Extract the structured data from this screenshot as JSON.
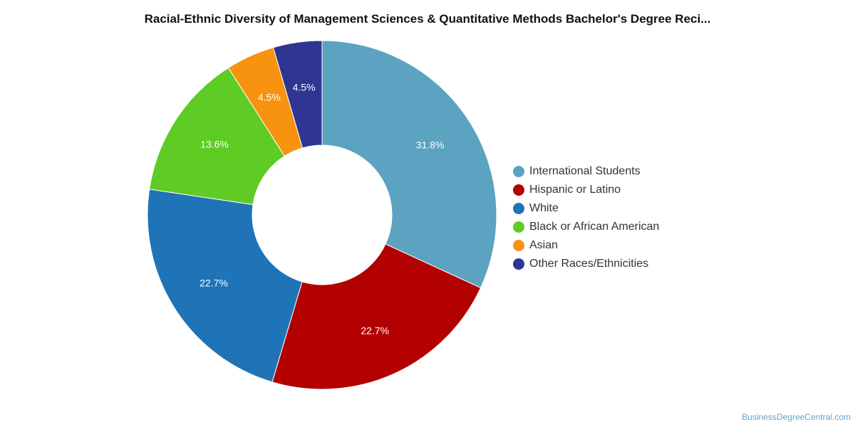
{
  "chart_data": {
    "type": "pie",
    "title": "Racial-Ethnic Diversity of Management Sciences & Quantitative Methods Bachelor's Degree Reci...",
    "donut": true,
    "legend_position": "right",
    "categories": [
      "International Students",
      "Hispanic or Latino",
      "White",
      "Black or African American",
      "Asian",
      "Other Races/Ethnicities"
    ],
    "values": [
      31.8,
      22.7,
      22.7,
      13.6,
      4.5,
      4.5
    ],
    "labels": [
      "31.8%",
      "22.7%",
      "22.7%",
      "13.6%",
      "4.5%",
      "4.5%"
    ],
    "colors": [
      "#5ba3c0",
      "#b30000",
      "#1f73b7",
      "#5fcb25",
      "#f7930f",
      "#2e3592"
    ]
  },
  "credit": "BusinessDegreeCentral.com"
}
